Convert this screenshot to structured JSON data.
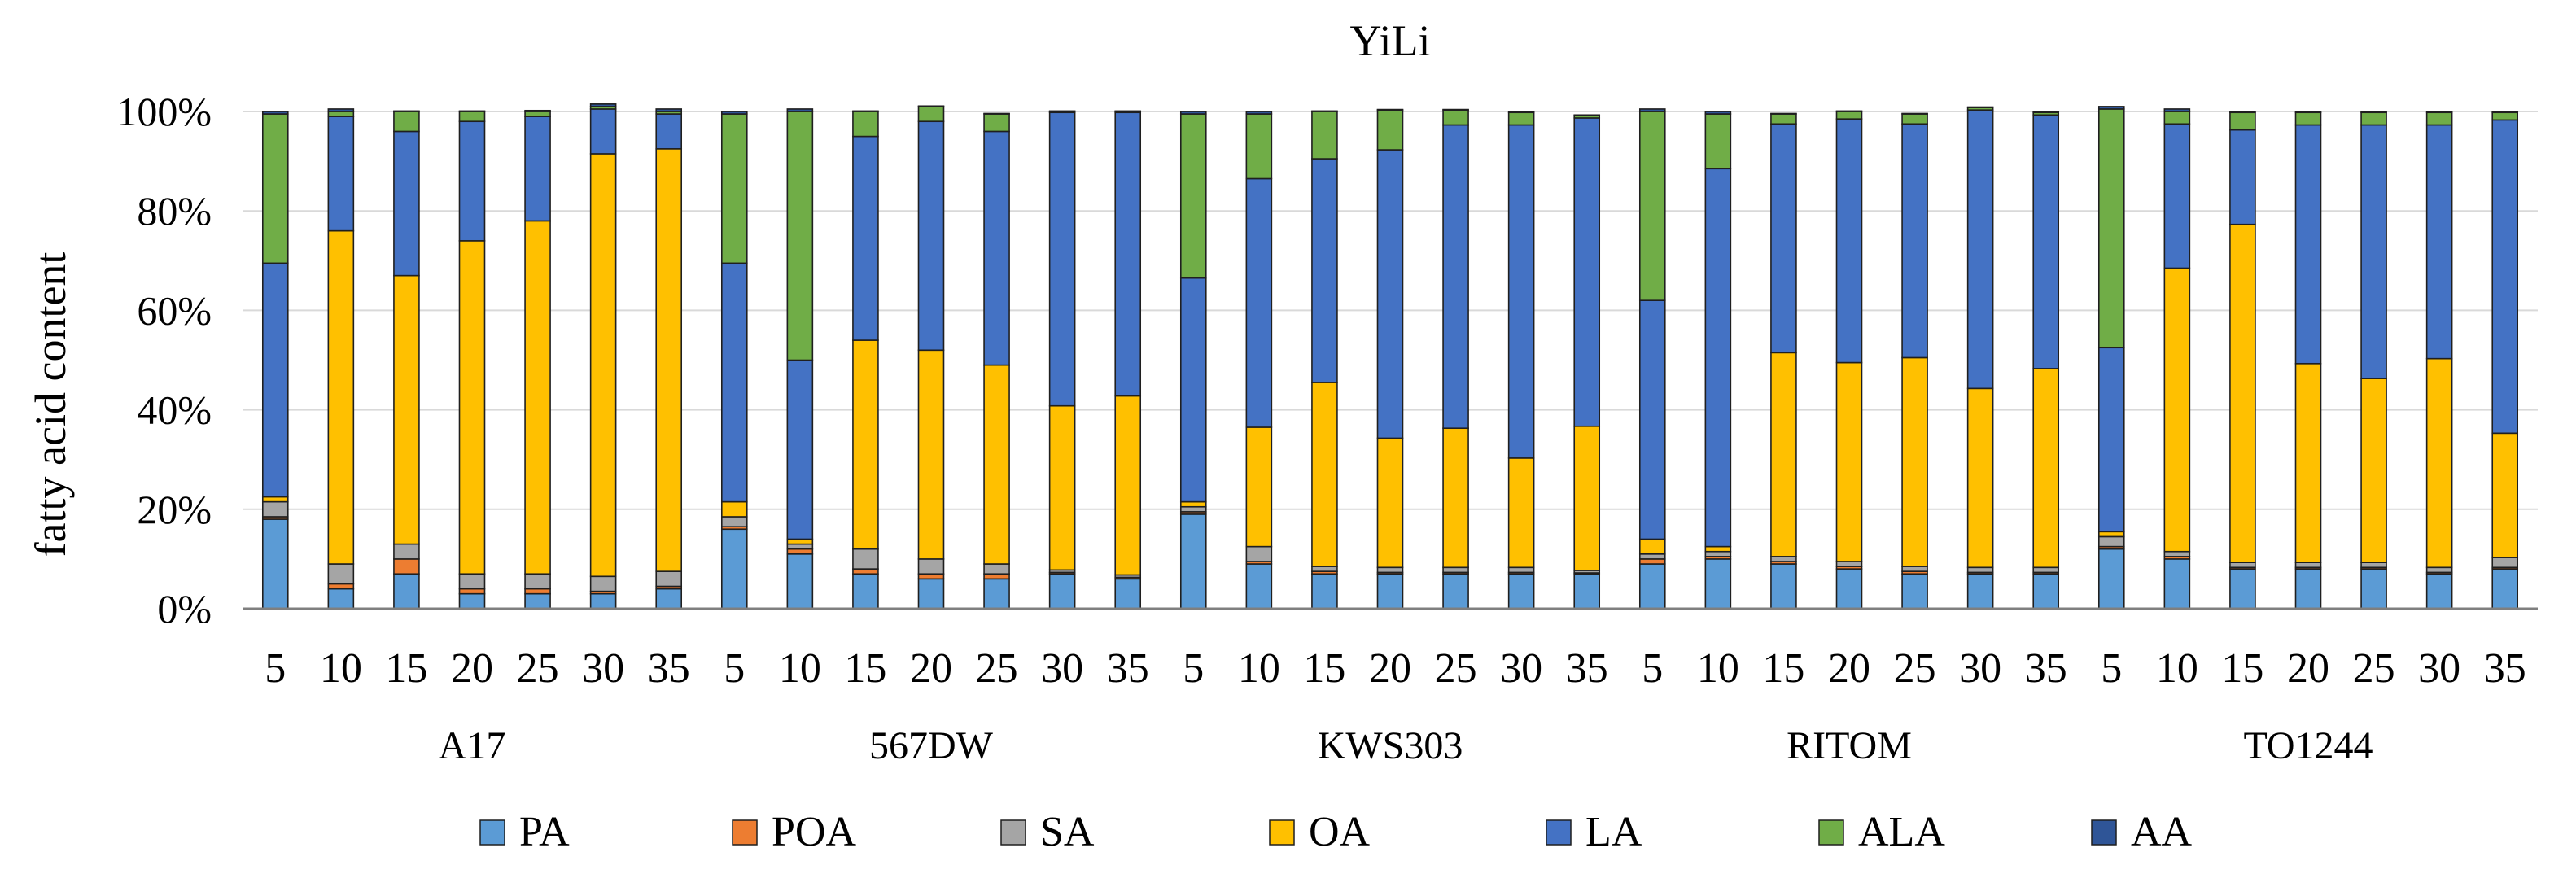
{
  "chart_data": {
    "type": "stacked-bar-100",
    "title": "YiLi",
    "xlabel": "",
    "ylabel": "fatty acid content",
    "ylim": [
      0,
      100
    ],
    "y_ticks": [
      "0%",
      "20%",
      "40%",
      "60%",
      "80%",
      "100%"
    ],
    "legend_position": "bottom",
    "groups": [
      {
        "name": "A17",
        "categories": [
          "5",
          "10",
          "15",
          "20",
          "25",
          "30",
          "35"
        ]
      },
      {
        "name": "567DW",
        "categories": [
          "5",
          "10",
          "15",
          "20",
          "25",
          "30",
          "35"
        ]
      },
      {
        "name": "KWS303",
        "categories": [
          "5",
          "10",
          "15",
          "20",
          "25",
          "30",
          "35"
        ]
      },
      {
        "name": "RITOM",
        "categories": [
          "5",
          "10",
          "15",
          "20",
          "25",
          "30",
          "35"
        ]
      },
      {
        "name": "TO1244",
        "categories": [
          "5",
          "10",
          "15",
          "20",
          "25",
          "30",
          "35"
        ]
      }
    ],
    "series": [
      {
        "name": "PA",
        "color": "#5B9BD5",
        "values": [
          18,
          4,
          7,
          3,
          3,
          3,
          4,
          16,
          11,
          7,
          6,
          6,
          7,
          6,
          19,
          9,
          7,
          7,
          7,
          7,
          7,
          9,
          10,
          9,
          8,
          7,
          7,
          7,
          12,
          10,
          8,
          8,
          8,
          7,
          8
        ]
      },
      {
        "name": "POA",
        "color": "#ED7D31",
        "values": [
          0.5,
          1,
          3,
          1,
          1,
          0.5,
          0.5,
          0.5,
          1,
          1,
          1,
          1,
          0.3,
          0.3,
          0.5,
          0.5,
          0.5,
          0.3,
          0.3,
          0.3,
          0.2,
          1,
          0.5,
          0.5,
          0.5,
          0.5,
          0.3,
          0.3,
          0.5,
          0.5,
          0.3,
          0.3,
          0.3,
          0.3,
          0.3
        ]
      },
      {
        "name": "SA",
        "color": "#A5A5A5",
        "values": [
          3,
          4,
          3,
          3,
          3,
          3,
          3,
          2,
          1,
          4,
          3,
          2,
          0.5,
          0.5,
          1,
          3,
          1,
          1,
          1,
          1,
          0.5,
          1,
          1,
          1,
          1,
          1,
          1,
          1,
          2,
          1,
          1,
          1,
          1,
          1,
          2
        ]
      },
      {
        "name": "OA",
        "color": "#FFC000",
        "values": [
          1,
          67,
          54,
          67,
          71,
          85,
          85,
          3,
          1,
          42,
          42,
          40,
          33,
          36,
          1,
          24,
          37,
          26,
          28,
          22,
          29,
          3,
          1,
          41,
          40,
          42,
          36,
          40,
          1,
          57,
          68,
          40,
          37,
          42,
          25
        ]
      },
      {
        "name": "LA",
        "color": "#4472C4",
        "values": [
          47,
          23,
          29,
          24,
          21,
          9,
          7,
          48,
          36,
          41,
          46,
          47,
          59,
          57,
          45,
          50,
          45,
          58,
          61,
          67,
          62,
          48,
          76,
          46,
          49,
          47,
          56,
          51,
          37,
          29,
          19,
          48,
          51,
          47,
          63
        ]
      },
      {
        "name": "ALA",
        "color": "#70AD47",
        "values": [
          30,
          1,
          4,
          2,
          1,
          0.5,
          0.5,
          30,
          50,
          5,
          3,
          3.5,
          0.2,
          0.2,
          33,
          13,
          9.5,
          8,
          3,
          2.5,
          0.5,
          38,
          11,
          2,
          1.5,
          2,
          0.5,
          0.5,
          48,
          2.5,
          3.5,
          2.5,
          2.5,
          2.5,
          1.5
        ]
      },
      {
        "name": "AA",
        "color": "#2F5597",
        "values": [
          0.5,
          0.5,
          0.1,
          0.1,
          0.2,
          0.5,
          0.5,
          0.5,
          0.5,
          0.1,
          0.1,
          0.1,
          0.1,
          0.1,
          0.5,
          0.5,
          0.1,
          0.1,
          0.1,
          0.1,
          0.1,
          0.5,
          0.5,
          0.1,
          0.1,
          0.1,
          0.1,
          0.1,
          0.5,
          0.5,
          0.1,
          0.1,
          0.1,
          0.1,
          0.1
        ]
      }
    ]
  }
}
